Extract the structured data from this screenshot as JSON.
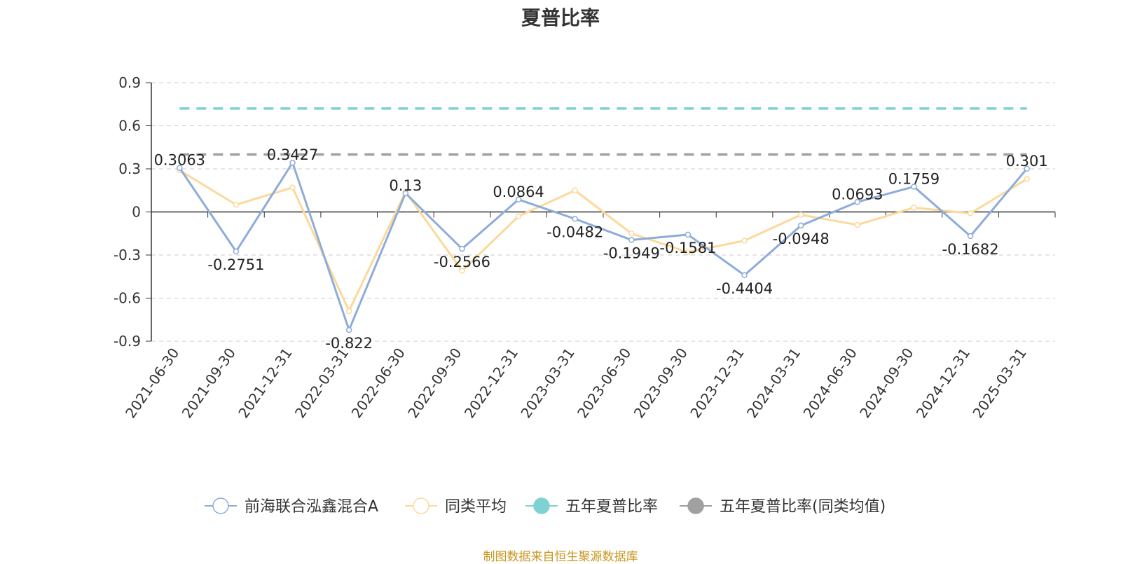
{
  "chart_data": {
    "type": "line",
    "title": "夏普比率",
    "categories": [
      "2021-06-30",
      "2021-09-30",
      "2021-12-31",
      "2022-03-31",
      "2022-06-30",
      "2022-09-30",
      "2022-12-31",
      "2023-03-31",
      "2023-06-30",
      "2023-09-30",
      "2023-12-31",
      "2024-03-31",
      "2024-06-30",
      "2024-09-30",
      "2024-12-31",
      "2025-03-31"
    ],
    "y_ticks": [
      "0.9",
      "0.6",
      "0.3",
      "0",
      "-0.3",
      "-0.6",
      "-0.9"
    ],
    "ylim": [
      -0.9,
      0.9
    ],
    "grid": true,
    "legend_position": "bottom",
    "series": [
      {
        "name": "前海联合泓鑫混合A",
        "color": "#8eacd9",
        "values": [
          0.3063,
          -0.2751,
          0.3427,
          -0.822,
          0.13,
          -0.2566,
          0.0864,
          -0.0482,
          -0.1949,
          -0.1581,
          -0.4404,
          -0.0948,
          0.0693,
          0.1759,
          -0.1682,
          0.301
        ],
        "labels": [
          "0.3063",
          "-0.2751",
          "0.3427",
          "-0.822",
          "0.13",
          "-0.2566",
          "0.0864",
          "-0.0482",
          "-0.1949",
          "-0.1581",
          "-0.4404",
          "-0.0948",
          "0.0693",
          "0.1759",
          "-0.1682",
          "0.301"
        ]
      },
      {
        "name": "同类平均",
        "color": "#fcd99b",
        "values": [
          0.29,
          0.05,
          0.17,
          -0.69,
          0.14,
          -0.41,
          -0.03,
          0.15,
          -0.15,
          -0.28,
          -0.2,
          -0.02,
          -0.09,
          0.03,
          -0.01,
          0.23
        ]
      },
      {
        "name": "五年夏普比率",
        "color": "#7fd1d4",
        "value": 0.72
      },
      {
        "name": "五年夏普比率(同类均值)",
        "color": "#a0a0a0",
        "value": 0.4
      }
    ]
  },
  "footer": {
    "source": "制图数据来自恒生聚源数据库"
  }
}
